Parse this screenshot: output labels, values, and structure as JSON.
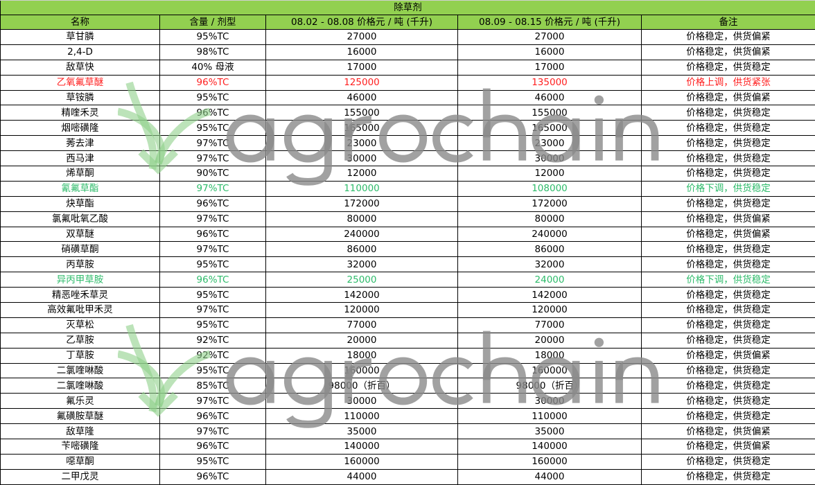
{
  "title": "除草剂",
  "columns": [
    "名称",
    "含量 / 剂型",
    "08.02 - 08.08 价格元 / 吨 (千升)",
    "08.09 - 08.15 价格元 / 吨 (千升)",
    "备注"
  ],
  "colors": {
    "header_bg": "#92d050",
    "up": "#ff2020",
    "down": "#2dbb6a"
  },
  "watermark": "agrochain",
  "rows": [
    {
      "name": "草甘膦",
      "spec": "95%TC",
      "p1": "27000",
      "p2": "27000",
      "note": "价格稳定，供货偏紧",
      "trend": ""
    },
    {
      "name": "2,4-D",
      "spec": "98%TC",
      "p1": "16000",
      "p2": "16000",
      "note": "价格稳定，供货偏紧",
      "trend": ""
    },
    {
      "name": "敌草快",
      "spec": "40% 母液",
      "p1": "17000",
      "p2": "17000",
      "note": "价格稳定，供货稳定",
      "trend": ""
    },
    {
      "name": "乙氧氟草醚",
      "spec": "96%TC",
      "p1": "125000",
      "p2": "135000",
      "note": "价格上调，供货紧张",
      "trend": "up"
    },
    {
      "name": "草铵膦",
      "spec": "95%TC",
      "p1": "46000",
      "p2": "46000",
      "note": "价格稳定，供货偏紧",
      "trend": ""
    },
    {
      "name": "精喹禾灵",
      "spec": "96%TC",
      "p1": "155000",
      "p2": "155000",
      "note": "价格稳定，供货稳定",
      "trend": ""
    },
    {
      "name": "烟嘧磺隆",
      "spec": "95%TC",
      "p1": "165000",
      "p2": "165000",
      "note": "价格稳定，供货稳定",
      "trend": ""
    },
    {
      "name": "莠去津",
      "spec": "97%TC",
      "p1": "23000",
      "p2": "23000",
      "note": "价格稳定，供货稳定",
      "trend": ""
    },
    {
      "name": "西马津",
      "spec": "97%TC",
      "p1": "30000",
      "p2": "30000",
      "note": "价格稳定，供货稳定",
      "trend": ""
    },
    {
      "name": "烯草酮",
      "spec": "90%TC",
      "p1": "12000",
      "p2": "12000",
      "note": "价格稳定，供货稳定",
      "trend": ""
    },
    {
      "name": "氰氟草酯",
      "spec": "97%TC",
      "p1": "110000",
      "p2": "108000",
      "note": "价格下调，供货稳定",
      "trend": "down"
    },
    {
      "name": "炔草酯",
      "spec": "96%TC",
      "p1": "172000",
      "p2": "172000",
      "note": "价格稳定，供货稳定",
      "trend": ""
    },
    {
      "name": "氯氟吡氧乙酸",
      "spec": "97%TC",
      "p1": "80000",
      "p2": "80000",
      "note": "价格稳定，供货偏紧",
      "trend": ""
    },
    {
      "name": "双草醚",
      "spec": "96%TC",
      "p1": "240000",
      "p2": "240000",
      "note": "价格稳定，供货偏紧",
      "trend": ""
    },
    {
      "name": "硝磺草酮",
      "spec": "97%TC",
      "p1": "86000",
      "p2": "86000",
      "note": "价格稳定，供货稳定",
      "trend": ""
    },
    {
      "name": "丙草胺",
      "spec": "95%TC",
      "p1": "32000",
      "p2": "32000",
      "note": "价格稳定，供货稳定",
      "trend": ""
    },
    {
      "name": "异丙甲草胺",
      "spec": "96%TC",
      "p1": "25000",
      "p2": "24000",
      "note": "价格下调，供货稳定",
      "trend": "down"
    },
    {
      "name": "精恶唑禾草灵",
      "spec": "95%TC",
      "p1": "142000",
      "p2": "142000",
      "note": "价格稳定，供货稳定",
      "trend": ""
    },
    {
      "name": "高效氟吡甲禾灵",
      "spec": "97%TC",
      "p1": "120000",
      "p2": "120000",
      "note": "价格稳定，供货稳定",
      "trend": ""
    },
    {
      "name": "灭草松",
      "spec": "95%TC",
      "p1": "77000",
      "p2": "77000",
      "note": "价格稳定，供货稳定",
      "trend": ""
    },
    {
      "name": "乙草胺",
      "spec": "92%TC",
      "p1": "20000",
      "p2": "20000",
      "note": "价格稳定，供货稳定",
      "trend": ""
    },
    {
      "name": "丁草胺",
      "spec": "92%TC",
      "p1": "18000",
      "p2": "18000",
      "note": "价格稳定，供货偏紧",
      "trend": ""
    },
    {
      "name": "二氯喹啉酸",
      "spec": "95%TC",
      "p1": "160000",
      "p2": "160000",
      "note": "价格稳定，供货稳定",
      "trend": ""
    },
    {
      "name": "二氯喹啉酸",
      "spec": "85%TC",
      "p1": "98000（折百）",
      "p2": "98000（折百）",
      "note": "价格稳定，供货稳定",
      "trend": ""
    },
    {
      "name": "氟乐灵",
      "spec": "97%TC",
      "p1": "30000",
      "p2": "30000",
      "note": "价格稳定，供货稳定",
      "trend": ""
    },
    {
      "name": "氟磺胺草醚",
      "spec": "96%TC",
      "p1": "110000",
      "p2": "110000",
      "note": "价格稳定，供货稳定",
      "trend": ""
    },
    {
      "name": "敌草隆",
      "spec": "97%TC",
      "p1": "35000",
      "p2": "35000",
      "note": "价格稳定，供货偏紧",
      "trend": ""
    },
    {
      "name": "苄嘧磺隆",
      "spec": "96%TC",
      "p1": "140000",
      "p2": "140000",
      "note": "价格稳定，供货偏紧",
      "trend": ""
    },
    {
      "name": "噁草酮",
      "spec": "95%TC",
      "p1": "160000",
      "p2": "160000",
      "note": "价格稳定，供货稳定",
      "trend": ""
    },
    {
      "name": "二甲戊灵",
      "spec": "96%TC",
      "p1": "44000",
      "p2": "44000",
      "note": "价格稳定，供货稳定",
      "trend": ""
    }
  ]
}
